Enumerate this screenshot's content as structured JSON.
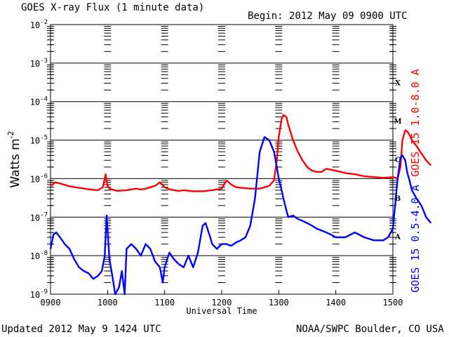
{
  "header": {
    "title": "GOES X-ray Flux (1 minute data)",
    "begin": "Begin: 2012 May 09 0900 UTC"
  },
  "footer": {
    "updated": "Updated 2012 May  9 1424 UTC",
    "credit": "NOAA/SWPC Boulder, CO USA"
  },
  "chart_data": {
    "type": "line",
    "title": "GOES X-ray Flux (1 minute data)",
    "xlabel": "Universal Time",
    "ylabel": "Watts m",
    "ylabel_sup": "-2",
    "yscale": "log",
    "ylim": [
      1e-09,
      0.01
    ],
    "xlim_minutes": [
      0,
      360
    ],
    "xticks": [
      "0900",
      "1000",
      "1100",
      "1200",
      "1300",
      "1400",
      "1500"
    ],
    "yticks_exp": [
      "-2",
      "-3",
      "-4",
      "-5",
      "-6",
      "-7",
      "-8",
      "-9"
    ],
    "grid": true,
    "flare_classes": [
      {
        "label": "X",
        "flux": 0.0001
      },
      {
        "label": "M",
        "flux": 1e-05
      },
      {
        "label": "C",
        "flux": 1e-06
      },
      {
        "label": "B",
        "flux": 1e-07
      },
      {
        "label": "A",
        "flux": 1e-08
      }
    ],
    "series": [
      {
        "name": "GOES 15 1.0-8.0 A",
        "color": "#ff0000",
        "x": [
          0,
          5,
          10,
          20,
          30,
          40,
          50,
          55,
          58,
          60,
          62,
          65,
          70,
          80,
          90,
          95,
          100,
          110,
          115,
          120,
          125,
          130,
          135,
          140,
          150,
          160,
          170,
          180,
          185,
          190,
          195,
          200,
          210,
          220,
          230,
          235,
          238,
          240,
          243,
          245,
          248,
          250,
          255,
          260,
          265,
          270,
          275,
          280,
          285,
          290,
          295,
          300,
          310,
          320,
          330,
          340,
          350,
          360,
          365,
          368,
          370,
          373,
          375,
          378,
          380,
          385,
          390,
          395,
          400
        ],
        "y": [
          6.5e-07,
          8e-07,
          7.5e-07,
          6.3e-07,
          5.8e-07,
          5.3e-07,
          5e-07,
          6e-07,
          1.3e-06,
          6.5e-07,
          5.5e-07,
          5.2e-07,
          4.8e-07,
          5e-07,
          5.5e-07,
          5.2e-07,
          5.5e-07,
          6.5e-07,
          8e-07,
          6e-07,
          5.3e-07,
          5e-07,
          4.8e-07,
          5e-07,
          4.7e-07,
          4.7e-07,
          5e-07,
          5.5e-07,
          9e-07,
          7e-07,
          6e-07,
          5.8e-07,
          5.5e-07,
          5.5e-07,
          6.5e-07,
          9e-07,
          3e-06,
          1.2e-05,
          3.5e-05,
          4.5e-05,
          4e-05,
          2.5e-05,
          1e-05,
          5e-06,
          3e-06,
          2e-06,
          1.6e-06,
          1.5e-06,
          1.5e-06,
          1.8e-06,
          1.7e-06,
          1.6e-06,
          1.4e-06,
          1.3e-06,
          1.15e-06,
          1.1e-06,
          1.05e-06,
          1.1e-06,
          1e-06,
          2e-06,
          1e-05,
          1.8e-05,
          1.7e-05,
          1.3e-05,
          1e-05,
          7e-06,
          4.5e-06,
          3e-06,
          2.2e-06
        ]
      },
      {
        "name": "GOES 15 0.5-4.0 A",
        "color": "#0000ff",
        "x": [
          0,
          3,
          6,
          10,
          15,
          20,
          25,
          30,
          35,
          40,
          45,
          50,
          54,
          57,
          59,
          60,
          62,
          65,
          68,
          72,
          75,
          78,
          80,
          85,
          90,
          95,
          100,
          105,
          110,
          115,
          118,
          120,
          125,
          130,
          135,
          140,
          145,
          150,
          155,
          160,
          163,
          165,
          168,
          170,
          175,
          180,
          185,
          190,
          195,
          200,
          205,
          210,
          215,
          220,
          225,
          230,
          235,
          238,
          240,
          243,
          245,
          248,
          250,
          255,
          260,
          265,
          270,
          275,
          280,
          285,
          290,
          295,
          300,
          310,
          320,
          330,
          340,
          350,
          355,
          360,
          365,
          368,
          370,
          373,
          375,
          378,
          380,
          385,
          390,
          395,
          400
        ],
        "y": [
          1.5e-08,
          3.5e-08,
          4e-08,
          3e-08,
          2e-08,
          1.5e-08,
          8e-09,
          5e-09,
          4e-09,
          3.5e-09,
          2.5e-09,
          3e-09,
          4e-09,
          1e-08,
          1.1e-07,
          5e-08,
          8e-09,
          3e-09,
          1e-09,
          1.5e-09,
          4e-09,
          1e-09,
          1.5e-08,
          2e-08,
          1.5e-08,
          1e-08,
          2e-08,
          1.5e-08,
          7e-09,
          5e-09,
          2e-09,
          5e-09,
          1.2e-08,
          8e-09,
          6e-09,
          5e-09,
          1e-08,
          5e-09,
          1.2e-08,
          6e-08,
          7e-08,
          5e-08,
          3e-08,
          2e-08,
          1.5e-08,
          2e-08,
          2e-08,
          1.8e-08,
          2.2e-08,
          2.5e-08,
          3e-08,
          6e-08,
          3e-07,
          5e-06,
          1.2e-05,
          1e-05,
          5e-06,
          2e-06,
          1e-06,
          5e-07,
          3e-07,
          1.5e-07,
          1e-07,
          1.1e-07,
          9e-08,
          8e-08,
          7e-08,
          6e-08,
          5e-08,
          4.5e-08,
          4e-08,
          3.5e-08,
          3e-08,
          3e-08,
          4e-08,
          3e-08,
          2.5e-08,
          2.5e-08,
          3e-08,
          5e-08,
          1e-06,
          3.5e-06,
          4e-06,
          3e-06,
          1.5e-06,
          8e-07,
          5e-07,
          3e-07,
          2e-07,
          1e-07,
          7e-08
        ]
      }
    ]
  }
}
